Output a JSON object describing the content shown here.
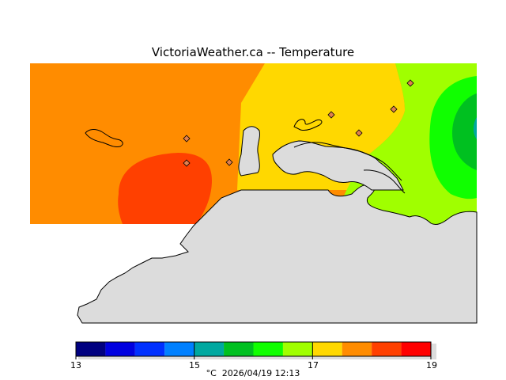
{
  "title": "VictoriaWeather.ca -- Temperature",
  "legend": {
    "unit": "°C",
    "timestamp": "2026/04/19 12:13",
    "min": 13,
    "max": 19,
    "labeled_ticks": [
      13,
      15,
      17,
      19
    ],
    "colors": [
      "#000080",
      "#0000e0",
      "#0030ff",
      "#0080ff",
      "#00a8a0",
      "#00c020",
      "#10ff00",
      "#a0ff00",
      "#ffd800",
      "#ff8c00",
      "#ff4000",
      "#ff0000"
    ]
  },
  "map_colors": {
    "land": "#dcdcdc",
    "coast": "#000000",
    "station_marker": "#e08050"
  },
  "stations_count": 7
}
